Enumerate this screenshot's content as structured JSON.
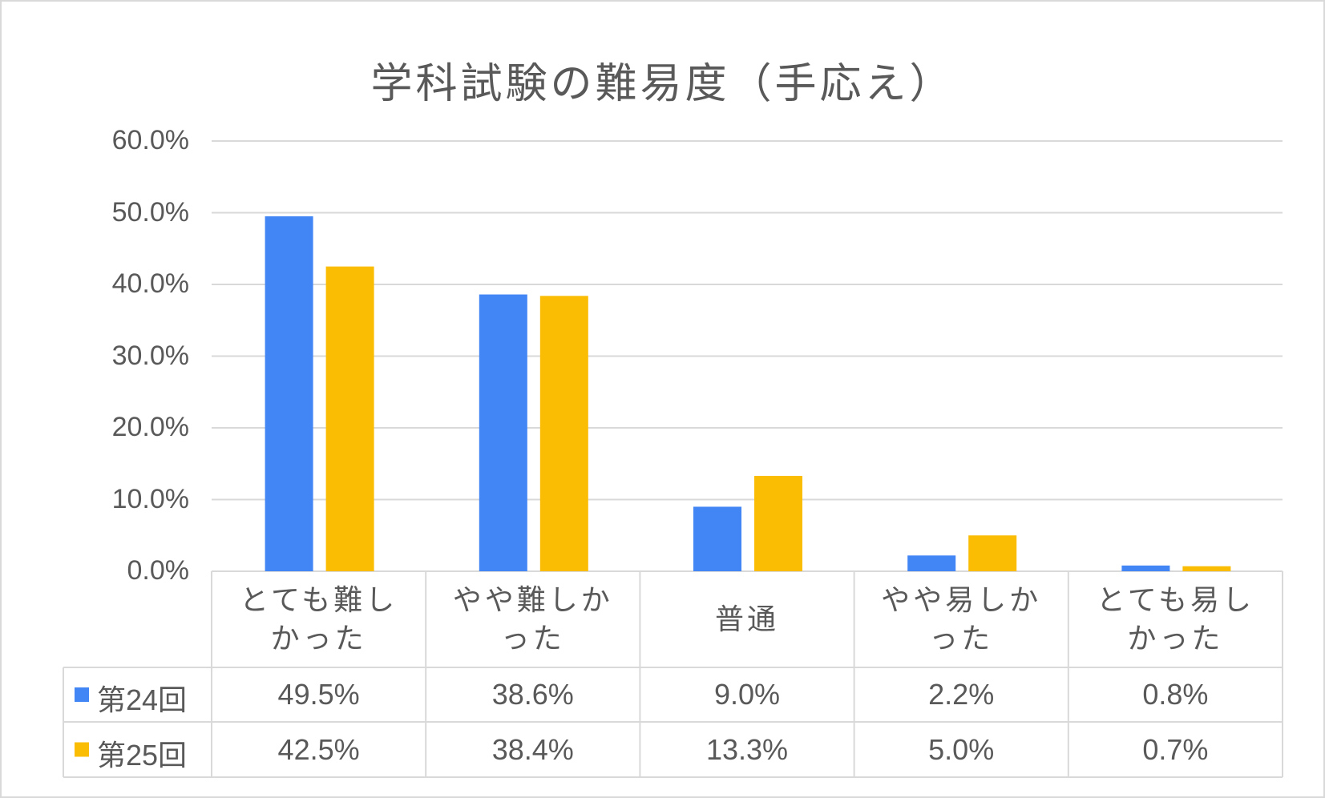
{
  "chart_data": {
    "type": "bar",
    "title": "学科試験の難易度（手応え）",
    "categories": [
      "とても難しかった",
      "やや難しかった",
      "普通",
      "やや易しかった",
      "とても易しかった"
    ],
    "series": [
      {
        "name": "第24回",
        "color": "#4285f4",
        "values": [
          49.5,
          38.6,
          9.0,
          2.2,
          0.8
        ],
        "value_labels": [
          "49.5%",
          "38.6%",
          "9.0%",
          "2.2%",
          "0.8%"
        ]
      },
      {
        "name": "第25回",
        "color": "#fbbc04",
        "values": [
          42.5,
          38.4,
          13.3,
          5.0,
          0.7
        ],
        "value_labels": [
          "42.5%",
          "38.4%",
          "13.3%",
          "5.0%",
          "0.7%"
        ]
      }
    ],
    "ylim": [
      0,
      60
    ],
    "yticks": [
      {
        "value": 0,
        "label": "0.0%"
      },
      {
        "value": 10,
        "label": "10.0%"
      },
      {
        "value": 20,
        "label": "20.0%"
      },
      {
        "value": 30,
        "label": "30.0%"
      },
      {
        "value": 40,
        "label": "40.0%"
      },
      {
        "value": 50,
        "label": "50.0%"
      },
      {
        "value": 60,
        "label": "60.0%"
      }
    ],
    "grid": true
  }
}
